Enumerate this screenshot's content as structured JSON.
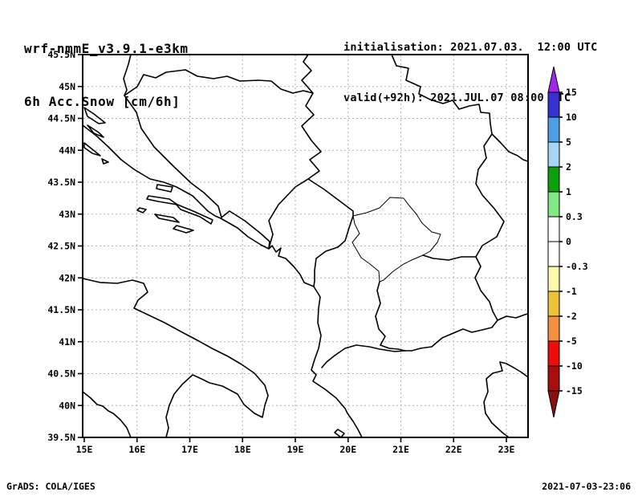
{
  "header": {
    "model_title": "wrf-nmmE_v3.9.1-e3km",
    "variable_title": "6h Acc.Snow [cm/6h]",
    "init_label": "initialisation: 2021.07.03.  12:00 UTC",
    "valid_label": "valid(+92h): 2021.JUL.07 08:00 UTC"
  },
  "footer": {
    "credit": "GrADS: COLA/IGES",
    "timestamp": "2021-07-03-23:06"
  },
  "chart_data": {
    "type": "map",
    "title": "6h Acc.Snow [cm/6h]",
    "subtitle": "wrf-nmmE_v3.9.1-e3km forecast, init 2021.07.03 12:00 UTC, valid(+92h) 2021.JUL.07 08:00 UTC",
    "region": "Adriatic / Balkans",
    "projection": "lat-lon",
    "lat_range": [
      39.5,
      45.5
    ],
    "lon_range": [
      15.0,
      23.4
    ],
    "lat_ticks": [
      "45.5N",
      "45N",
      "44.5N",
      "44N",
      "43.5N",
      "43N",
      "42.5N",
      "42N",
      "41.5N",
      "41N",
      "40.5N",
      "40N",
      "39.5N"
    ],
    "lon_ticks": [
      "15E",
      "16E",
      "17E",
      "18E",
      "19E",
      "20E",
      "21E",
      "22E",
      "23E"
    ],
    "grid": true,
    "field_values": "no shaded snow accumulation visible anywhere in domain (empty field, map outline only)",
    "colorbar": {
      "units": "cm/6h",
      "labels": [
        "15",
        "10",
        "5",
        "2",
        "1",
        "0.3",
        "0",
        "-0.3",
        "-1",
        "-2",
        "-5",
        "-10",
        "-15"
      ],
      "colors": [
        "#3732cf",
        "#4f9de4",
        "#a5d5f2",
        "#0ca00c",
        "#84e884",
        "#ffffff",
        "#ffffff",
        "#fdfab0",
        "#eec33c",
        "#f2913f",
        "#ee0d0d",
        "#a80d0d"
      ],
      "arrow_top": "#a128e8",
      "arrow_bottom": "#8a0f0f"
    }
  }
}
